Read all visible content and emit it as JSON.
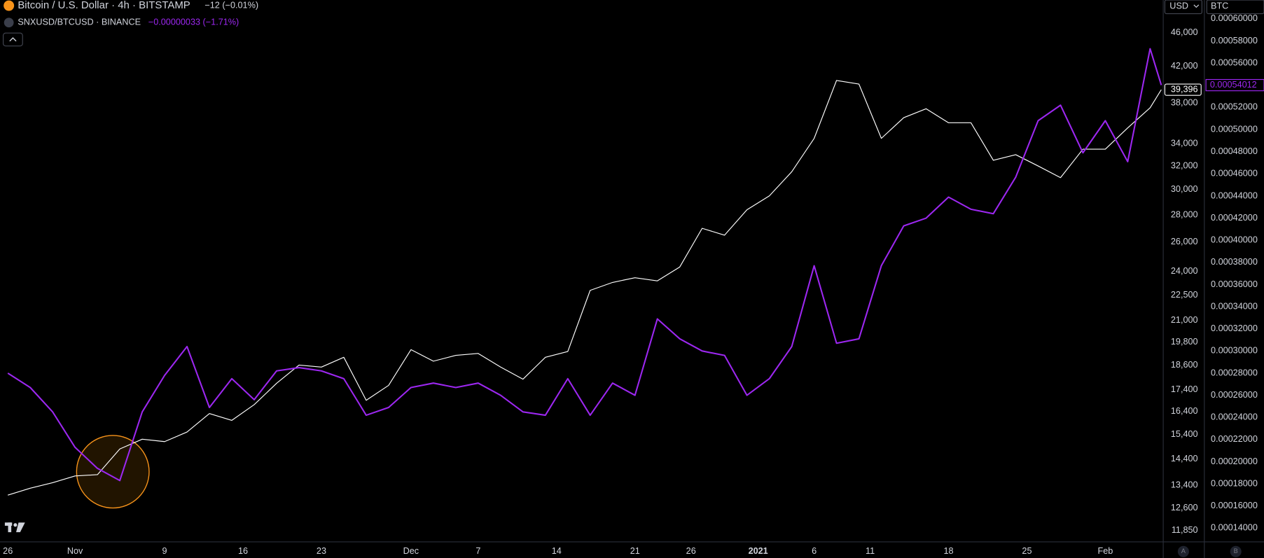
{
  "chart_data": {
    "type": "line",
    "x": [
      0,
      2,
      4,
      6,
      8,
      10,
      12,
      14,
      16,
      18,
      20,
      22,
      24,
      26,
      28,
      30,
      32,
      34,
      36,
      38,
      40,
      42,
      44,
      46,
      48,
      50,
      52,
      54,
      56,
      58,
      60,
      62,
      64,
      66,
      68,
      70,
      72,
      74,
      76,
      78,
      80,
      82,
      84,
      86,
      88,
      90,
      92,
      94,
      96,
      98,
      100,
      102,
      103
    ],
    "xlim": [
      -0.7,
      103.1
    ],
    "xticks": [
      {
        "value": 0,
        "label": "26"
      },
      {
        "value": 6,
        "label": "Nov"
      },
      {
        "value": 14,
        "label": "9"
      },
      {
        "value": 21,
        "label": "16"
      },
      {
        "value": 28,
        "label": "23"
      },
      {
        "value": 36,
        "label": "Dec"
      },
      {
        "value": 42,
        "label": "7"
      },
      {
        "value": 49,
        "label": "14"
      },
      {
        "value": 56,
        "label": "21"
      },
      {
        "value": 61,
        "label": "26"
      },
      {
        "value": 67,
        "label": "2021"
      },
      {
        "value": 72,
        "label": "6"
      },
      {
        "value": 77,
        "label": "11"
      },
      {
        "value": 84,
        "label": "18"
      },
      {
        "value": 91,
        "label": "25"
      },
      {
        "value": 98,
        "label": "Feb"
      }
    ],
    "series": [
      {
        "name": "Bitcoin / U.S. Dollar · 4h · BITSTAMP",
        "change": "−12 (−0.01%)",
        "color": "#ffffff",
        "axis": "y",
        "values": [
          13050,
          13300,
          13500,
          13750,
          13800,
          14800,
          15200,
          15100,
          15500,
          16300,
          16000,
          16700,
          17700,
          18600,
          18500,
          19000,
          16900,
          17600,
          19400,
          18800,
          19100,
          19200,
          18500,
          17900,
          19000,
          19300,
          22800,
          23300,
          23600,
          23400,
          24300,
          27000,
          26500,
          28400,
          29500,
          31500,
          34500,
          40400,
          40000,
          34500,
          36500,
          37400,
          36000,
          36000,
          32500,
          33000,
          32000,
          31000,
          33500,
          33500,
          35500,
          37500,
          39396
        ],
        "value_labels": [
          null,
          null,
          null,
          null,
          null,
          null,
          null,
          null,
          null,
          null,
          null,
          null,
          null,
          null,
          null,
          null,
          null,
          null,
          null,
          null,
          null,
          null,
          null,
          null,
          null,
          null,
          null,
          null,
          null,
          null,
          null,
          null,
          null,
          null,
          null,
          null,
          null,
          null,
          null,
          null,
          null,
          null,
          null,
          null,
          null,
          null,
          null,
          null,
          null,
          null,
          null,
          null,
          "39,396"
        ]
      },
      {
        "name": "SNXUSD/BTCUSD · BINANCE",
        "change": "−0.00000033 (−1.71%)",
        "color": "#9c27f0",
        "axis": "y2",
        "values": [
          0.00028,
          0.000267,
          0.000245,
          0.000213,
          0.000194,
          0.000183,
          0.000245,
          0.000278,
          0.000304,
          0.000249,
          0.000275,
          0.000256,
          0.000282,
          0.000285,
          0.000282,
          0.000275,
          0.000242,
          0.000249,
          0.000267,
          0.000271,
          0.000267,
          0.000271,
          0.00026,
          0.000245,
          0.000242,
          0.000275,
          0.000242,
          0.000271,
          0.00026,
          0.000329,
          0.000311,
          0.0003,
          0.000296,
          0.00026,
          0.000275,
          0.000304,
          0.000377,
          0.000307,
          0.000311,
          0.000377,
          0.000413,
          0.00042,
          0.000439,
          0.000428,
          0.000424,
          0.000457,
          0.000508,
          0.000522,
          0.000479,
          0.000508,
          0.000471,
          0.000573,
          0.00054012
        ]
      }
    ],
    "log_y": true,
    "ylim": [
      11490,
      50300
    ],
    "yticks": [
      {
        "value": 11850,
        "label": "11,850"
      },
      {
        "value": 12600,
        "label": "12,600"
      },
      {
        "value": 13400,
        "label": "13,400"
      },
      {
        "value": 14400,
        "label": "14,400"
      },
      {
        "value": 15400,
        "label": "15,400"
      },
      {
        "value": 16400,
        "label": "16,400"
      },
      {
        "value": 17400,
        "label": "17,400"
      },
      {
        "value": 18600,
        "label": "18,600"
      },
      {
        "value": 19800,
        "label": "19,800"
      },
      {
        "value": 21000,
        "label": "21,000"
      },
      {
        "value": 22500,
        "label": "22,500"
      },
      {
        "value": 24000,
        "label": "24,000"
      },
      {
        "value": 26000,
        "label": "26,000"
      },
      {
        "value": 28000,
        "label": "28,000"
      },
      {
        "value": 30000,
        "label": "30,000"
      },
      {
        "value": 32000,
        "label": "32,000"
      },
      {
        "value": 34000,
        "label": "34,000"
      },
      {
        "value": 38000,
        "label": "38,000"
      },
      {
        "value": 42000,
        "label": "42,000"
      },
      {
        "value": 46000,
        "label": "46,000"
      }
    ],
    "y2lim": [
      0.0001276,
      0.000617
    ],
    "y2ticks": [
      {
        "value": 0.00014,
        "label": "0.00014000"
      },
      {
        "value": 0.00016,
        "label": "0.00016000"
      },
      {
        "value": 0.00018,
        "label": "0.00018000"
      },
      {
        "value": 0.0002,
        "label": "0.00020000"
      },
      {
        "value": 0.00022,
        "label": "0.00022000"
      },
      {
        "value": 0.00024,
        "label": "0.00024000"
      },
      {
        "value": 0.00026,
        "label": "0.00026000"
      },
      {
        "value": 0.00028,
        "label": "0.00028000"
      },
      {
        "value": 0.0003,
        "label": "0.00030000"
      },
      {
        "value": 0.00032,
        "label": "0.00032000"
      },
      {
        "value": 0.00034,
        "label": "0.00034000"
      },
      {
        "value": 0.00036,
        "label": "0.00036000"
      },
      {
        "value": 0.00038,
        "label": "0.00038000"
      },
      {
        "value": 0.0004,
        "label": "0.00040000"
      },
      {
        "value": 0.00042,
        "label": "0.00042000"
      },
      {
        "value": 0.00044,
        "label": "0.00044000"
      },
      {
        "value": 0.00046,
        "label": "0.00046000"
      },
      {
        "value": 0.00048,
        "label": "0.00048000"
      },
      {
        "value": 0.0005,
        "label": "0.00050000"
      },
      {
        "value": 0.00052,
        "label": "0.00052000"
      },
      {
        "value": 0.00054,
        "label": "0.00054000"
      },
      {
        "value": 0.00056,
        "label": "0.00056000"
      },
      {
        "value": 0.00058,
        "label": "0.00058000"
      },
      {
        "value": 0.0006,
        "label": "0.00060000"
      }
    ],
    "grid": false,
    "scale_labels": [
      "USD",
      "BTC"
    ],
    "pane_labels": [
      "A",
      "B"
    ]
  }
}
